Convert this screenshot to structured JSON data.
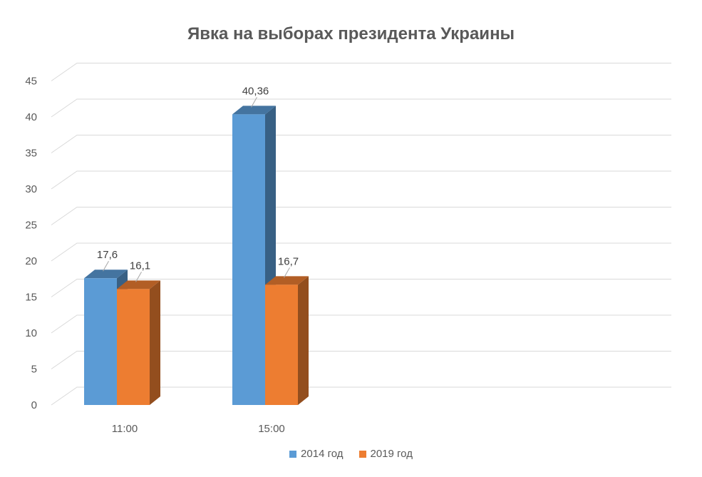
{
  "chart_data": {
    "type": "bar",
    "title": "Явка на выборах президента Украины",
    "categories": [
      "11:00",
      "15:00"
    ],
    "series": [
      {
        "name": "2014 год",
        "values": [
          17.6,
          40.36
        ],
        "labels": [
          "17,6",
          "40,36"
        ],
        "color": "#5b9bd5"
      },
      {
        "name": "2019 год",
        "values": [
          16.1,
          16.7
        ],
        "labels": [
          "16,1",
          "16,7"
        ],
        "color": "#ed7d31"
      }
    ],
    "yticks": [
      "0",
      "5",
      "10",
      "15",
      "20",
      "25",
      "30",
      "35",
      "40",
      "45"
    ],
    "ylim": [
      0,
      45
    ],
    "grid": true,
    "legend": "bottom",
    "style": "3d-clustered-column"
  }
}
